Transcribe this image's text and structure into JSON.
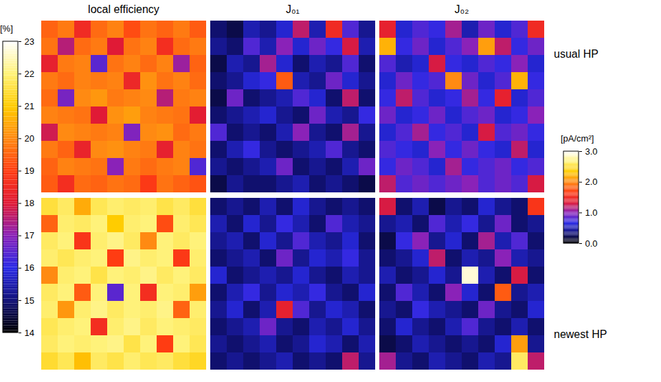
{
  "chart_data": {
    "type": "heatmap",
    "columns": [
      "local efficiency",
      "J₀₁",
      "J₀₂"
    ],
    "rows": [
      "usual HP",
      "newest HP"
    ],
    "colorbars": [
      {
        "title": "[%]",
        "range": [
          14,
          23
        ],
        "ticks": [
          14,
          15,
          16,
          17,
          18,
          19,
          20,
          21,
          22,
          23
        ]
      },
      {
        "title": "[pA/cm²]",
        "range": [
          0,
          3
        ],
        "ticks": [
          0,
          1,
          2,
          3
        ]
      }
    ],
    "panels": [
      {
        "column": "local efficiency",
        "row": "usual HP",
        "colorbar": "[%]",
        "cells": [
          [
            19.5,
            19.8,
            18.5,
            19.6,
            19.9,
            19.2,
            19.7,
            19.5,
            19.8,
            19.4
          ],
          [
            19.7,
            17.5,
            19.6,
            19.8,
            18.0,
            19.7,
            19.9,
            18.6,
            19.6,
            19.8
          ],
          [
            18.2,
            19.8,
            19.9,
            16.5,
            19.7,
            19.9,
            19.6,
            19.9,
            17.2,
            19.5
          ],
          [
            19.8,
            19.6,
            19.9,
            19.8,
            19.9,
            18.4,
            20.1,
            19.7,
            19.9,
            19.6
          ],
          [
            19.6,
            16.8,
            20.0,
            20.2,
            19.8,
            19.9,
            20.0,
            17.5,
            19.8,
            19.9
          ],
          [
            19.9,
            19.8,
            19.7,
            18.0,
            20.1,
            20.3,
            19.9,
            19.8,
            19.7,
            18.1
          ],
          [
            17.8,
            20.0,
            19.9,
            19.8,
            19.9,
            16.9,
            20.0,
            20.1,
            19.6,
            19.8
          ],
          [
            19.8,
            19.5,
            18.3,
            20.0,
            20.1,
            19.9,
            19.8,
            18.2,
            19.9,
            19.7
          ],
          [
            19.5,
            19.9,
            19.8,
            19.7,
            17.0,
            19.8,
            19.6,
            19.8,
            19.9,
            16.4
          ],
          [
            19.4,
            18.6,
            19.6,
            19.5,
            19.7,
            19.6,
            18.9,
            19.7,
            19.5,
            19.3
          ]
        ]
      },
      {
        "column": "J₀₁",
        "row": "usual HP",
        "colorbar": "[pA/cm²]",
        "cells": [
          [
            0.3,
            0.2,
            0.5,
            0.4,
            0.6,
            1.2,
            0.5,
            1.5,
            0.8,
            0.4
          ],
          [
            0.4,
            0.3,
            0.8,
            0.5,
            1.0,
            0.6,
            0.9,
            0.7,
            1.3,
            0.5
          ],
          [
            0.2,
            0.5,
            0.4,
            1.1,
            0.6,
            0.3,
            0.5,
            0.4,
            0.8,
            0.3
          ],
          [
            0.3,
            0.4,
            0.6,
            0.7,
            1.8,
            0.5,
            0.4,
            0.9,
            0.6,
            0.4
          ],
          [
            0.2,
            0.9,
            0.3,
            0.4,
            0.5,
            0.8,
            0.6,
            0.3,
            1.2,
            0.3
          ],
          [
            0.3,
            0.4,
            0.5,
            0.6,
            0.4,
            0.3,
            0.9,
            0.5,
            0.4,
            0.7
          ],
          [
            0.8,
            0.3,
            0.4,
            0.3,
            0.5,
            1.0,
            0.4,
            0.3,
            1.1,
            0.4
          ],
          [
            0.3,
            0.5,
            0.7,
            0.4,
            0.3,
            0.4,
            0.5,
            0.8,
            0.4,
            0.3
          ],
          [
            0.4,
            0.3,
            0.4,
            0.5,
            0.9,
            0.3,
            0.4,
            0.3,
            0.5,
            0.9
          ],
          [
            0.2,
            0.4,
            0.3,
            0.3,
            0.4,
            0.5,
            0.3,
            0.4,
            0.3,
            0.2
          ]
        ]
      },
      {
        "column": "J₀₂",
        "row": "usual HP",
        "colorbar": "[pA/cm²]",
        "cells": [
          [
            1.4,
            0.6,
            0.8,
            0.7,
            1.1,
            0.5,
            0.9,
            0.6,
            0.8,
            1.5
          ],
          [
            2.2,
            0.7,
            0.9,
            0.6,
            0.8,
            1.0,
            2.1,
            1.2,
            0.7,
            0.9
          ],
          [
            0.8,
            0.5,
            0.6,
            1.3,
            0.7,
            0.6,
            0.8,
            0.7,
            1.0,
            0.6
          ],
          [
            0.6,
            0.9,
            0.7,
            0.8,
            2.0,
            0.9,
            0.6,
            0.8,
            2.2,
            0.7
          ],
          [
            0.7,
            1.2,
            0.8,
            0.6,
            0.7,
            1.1,
            0.7,
            1.4,
            0.6,
            0.8
          ],
          [
            0.9,
            0.6,
            0.7,
            0.9,
            0.6,
            0.8,
            0.9,
            0.6,
            0.7,
            1.0
          ],
          [
            0.6,
            0.8,
            1.1,
            0.7,
            0.8,
            0.6,
            1.3,
            0.8,
            0.9,
            0.7
          ],
          [
            0.8,
            0.7,
            0.6,
            1.0,
            0.7,
            0.9,
            0.7,
            0.6,
            1.2,
            0.6
          ],
          [
            0.7,
            0.9,
            0.8,
            0.6,
            1.1,
            0.7,
            0.8,
            0.9,
            0.7,
            0.8
          ],
          [
            1.2,
            0.8,
            0.9,
            0.8,
            0.9,
            1.0,
            0.8,
            0.9,
            0.8,
            1.3
          ]
        ]
      },
      {
        "column": "local efficiency",
        "row": "newest HP",
        "colorbar": "[%]",
        "cells": [
          [
            21.5,
            21.8,
            20.5,
            21.7,
            21.9,
            21.8,
            21.9,
            21.6,
            21.8,
            21.5
          ],
          [
            19.5,
            21.9,
            21.8,
            22.0,
            21.0,
            21.9,
            22.0,
            19.2,
            21.9,
            21.7
          ],
          [
            21.8,
            22.0,
            18.8,
            21.9,
            22.1,
            21.8,
            20.0,
            22.0,
            21.8,
            22.0
          ],
          [
            21.9,
            21.7,
            21.9,
            22.0,
            19.0,
            22.1,
            21.9,
            22.0,
            18.9,
            21.9
          ],
          [
            20.0,
            21.9,
            22.0,
            21.6,
            22.0,
            21.9,
            22.1,
            21.8,
            22.0,
            21.8
          ],
          [
            21.8,
            22.0,
            19.4,
            22.0,
            16.5,
            22.0,
            18.6,
            22.0,
            21.9,
            20.3
          ],
          [
            21.9,
            20.2,
            21.9,
            22.1,
            21.8,
            22.0,
            21.9,
            22.1,
            19.5,
            21.9
          ],
          [
            21.7,
            21.9,
            22.0,
            18.6,
            21.9,
            22.1,
            21.8,
            22.0,
            21.9,
            21.8
          ],
          [
            21.8,
            22.0,
            21.9,
            22.0,
            22.1,
            21.6,
            22.0,
            19.0,
            22.0,
            21.7
          ],
          [
            21.4,
            21.7,
            20.8,
            21.8,
            21.6,
            21.9,
            21.7,
            21.8,
            21.5,
            21.3
          ]
        ]
      },
      {
        "column": "J₀₁",
        "row": "newest HP",
        "colorbar": "[pA/cm²]",
        "cells": [
          [
            0.3,
            0.4,
            0.3,
            0.5,
            0.3,
            0.6,
            0.4,
            0.3,
            0.4,
            0.3
          ],
          [
            0.5,
            0.3,
            0.6,
            0.4,
            0.7,
            0.5,
            0.3,
            0.8,
            0.5,
            0.4
          ],
          [
            0.4,
            0.5,
            0.3,
            0.6,
            0.4,
            0.8,
            0.5,
            0.4,
            0.6,
            0.3
          ],
          [
            0.3,
            0.4,
            0.5,
            0.3,
            0.9,
            0.4,
            0.6,
            0.5,
            0.7,
            0.4
          ],
          [
            0.6,
            0.3,
            0.4,
            0.5,
            0.4,
            0.6,
            0.4,
            0.3,
            0.5,
            0.4
          ],
          [
            0.3,
            0.5,
            0.7,
            0.4,
            0.6,
            0.5,
            0.7,
            0.4,
            0.3,
            0.6
          ],
          [
            0.4,
            0.6,
            0.3,
            0.5,
            1.4,
            0.8,
            0.4,
            0.6,
            0.5,
            0.3
          ],
          [
            0.3,
            0.4,
            0.5,
            0.9,
            0.4,
            0.3,
            0.5,
            0.4,
            0.6,
            0.4
          ],
          [
            0.4,
            0.3,
            0.4,
            0.5,
            0.3,
            0.4,
            0.6,
            0.5,
            0.3,
            0.5
          ],
          [
            0.3,
            0.4,
            0.3,
            0.4,
            0.5,
            0.3,
            0.4,
            0.3,
            1.2,
            0.4
          ]
        ]
      },
      {
        "column": "J₀₂",
        "row": "newest HP",
        "colorbar": "[pA/cm²]",
        "cells": [
          [
            1.3,
            0.3,
            0.5,
            0.2,
            0.4,
            0.3,
            0.6,
            0.4,
            0.3,
            1.6
          ],
          [
            0.4,
            0.5,
            0.3,
            0.8,
            0.5,
            0.7,
            0.4,
            0.9,
            0.3,
            0.4
          ],
          [
            0.2,
            0.7,
            1.0,
            0.4,
            0.6,
            0.3,
            1.1,
            0.5,
            0.8,
            0.3
          ],
          [
            0.3,
            0.4,
            0.6,
            1.2,
            0.3,
            0.5,
            0.4,
            1.0,
            0.5,
            0.4
          ],
          [
            0.5,
            0.3,
            0.4,
            0.6,
            0.4,
            2.9,
            0.5,
            0.3,
            1.3,
            0.3
          ],
          [
            0.3,
            0.8,
            0.5,
            0.3,
            1.0,
            0.6,
            0.3,
            1.8,
            0.4,
            0.5
          ],
          [
            0.4,
            0.3,
            0.7,
            0.5,
            0.4,
            0.3,
            0.9,
            0.4,
            0.3,
            0.6
          ],
          [
            0.3,
            0.6,
            0.4,
            0.3,
            0.5,
            0.8,
            0.4,
            0.3,
            0.5,
            0.3
          ],
          [
            0.2,
            0.3,
            0.5,
            0.4,
            0.3,
            0.4,
            0.3,
            0.6,
            2.1,
            0.4
          ],
          [
            1.1,
            0.4,
            0.3,
            0.5,
            0.4,
            0.3,
            0.5,
            0.4,
            2.6,
            1.2
          ]
        ]
      }
    ]
  }
}
